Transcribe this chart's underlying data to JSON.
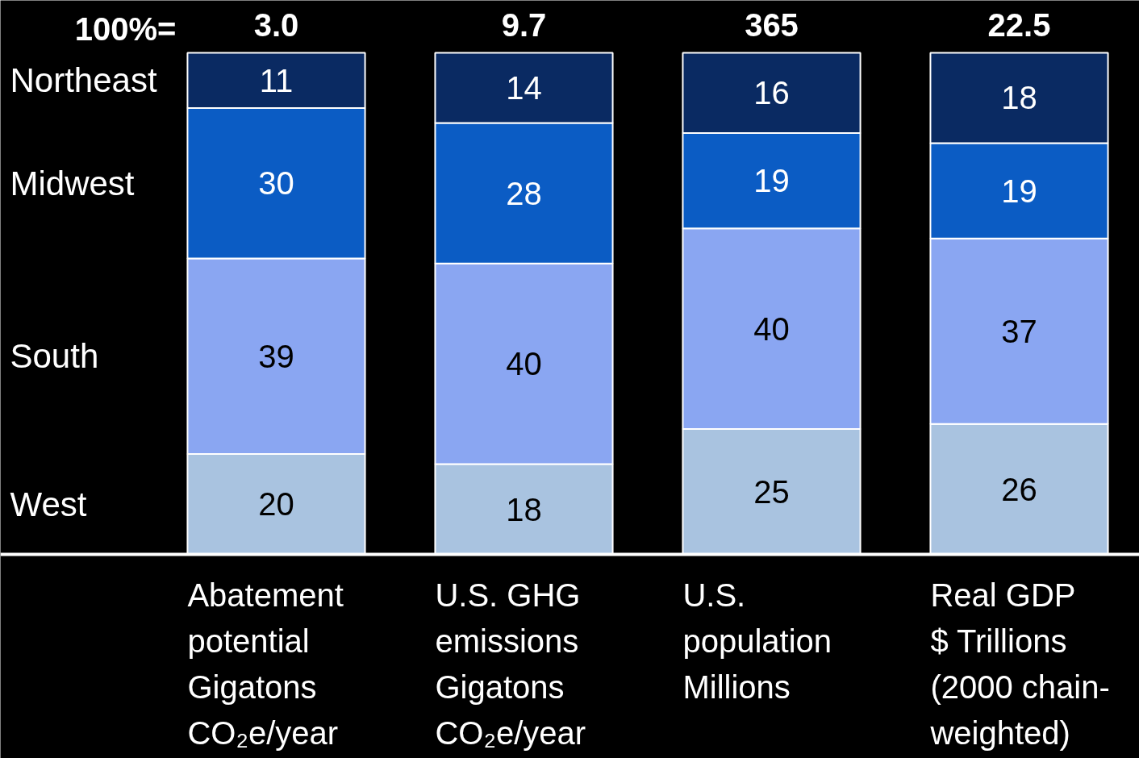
{
  "chart_data": {
    "type": "bar",
    "stacked": true,
    "data_labels": true,
    "legend": false,
    "grid": false,
    "tick_labels": false,
    "categories": [
      "Abatement\npotential\nGigatons\nCO₂e/year",
      "U.S. GHG\nemissions\nGigatons\nCO₂e/year",
      "U.S.\npopulation\nMillions",
      "Real GDP\n$ Trillions\n(2000 chain-\nweighted)"
    ],
    "series": [
      {
        "name": "West",
        "color": "#a9c3e0",
        "values": [
          20,
          18,
          25,
          26
        ]
      },
      {
        "name": "South",
        "color": "#8aa6f2",
        "values": [
          39,
          40,
          40,
          37
        ]
      },
      {
        "name": "Midwest",
        "color": "#0b5cc4",
        "values": [
          30,
          28,
          19,
          19
        ]
      },
      {
        "name": "Northeast",
        "color": "#0a2a62",
        "values": [
          11,
          14,
          16,
          18
        ]
      }
    ],
    "annotations": [
      "100%=",
      "3.0",
      "9.7",
      "365",
      "22.5"
    ]
  }
}
